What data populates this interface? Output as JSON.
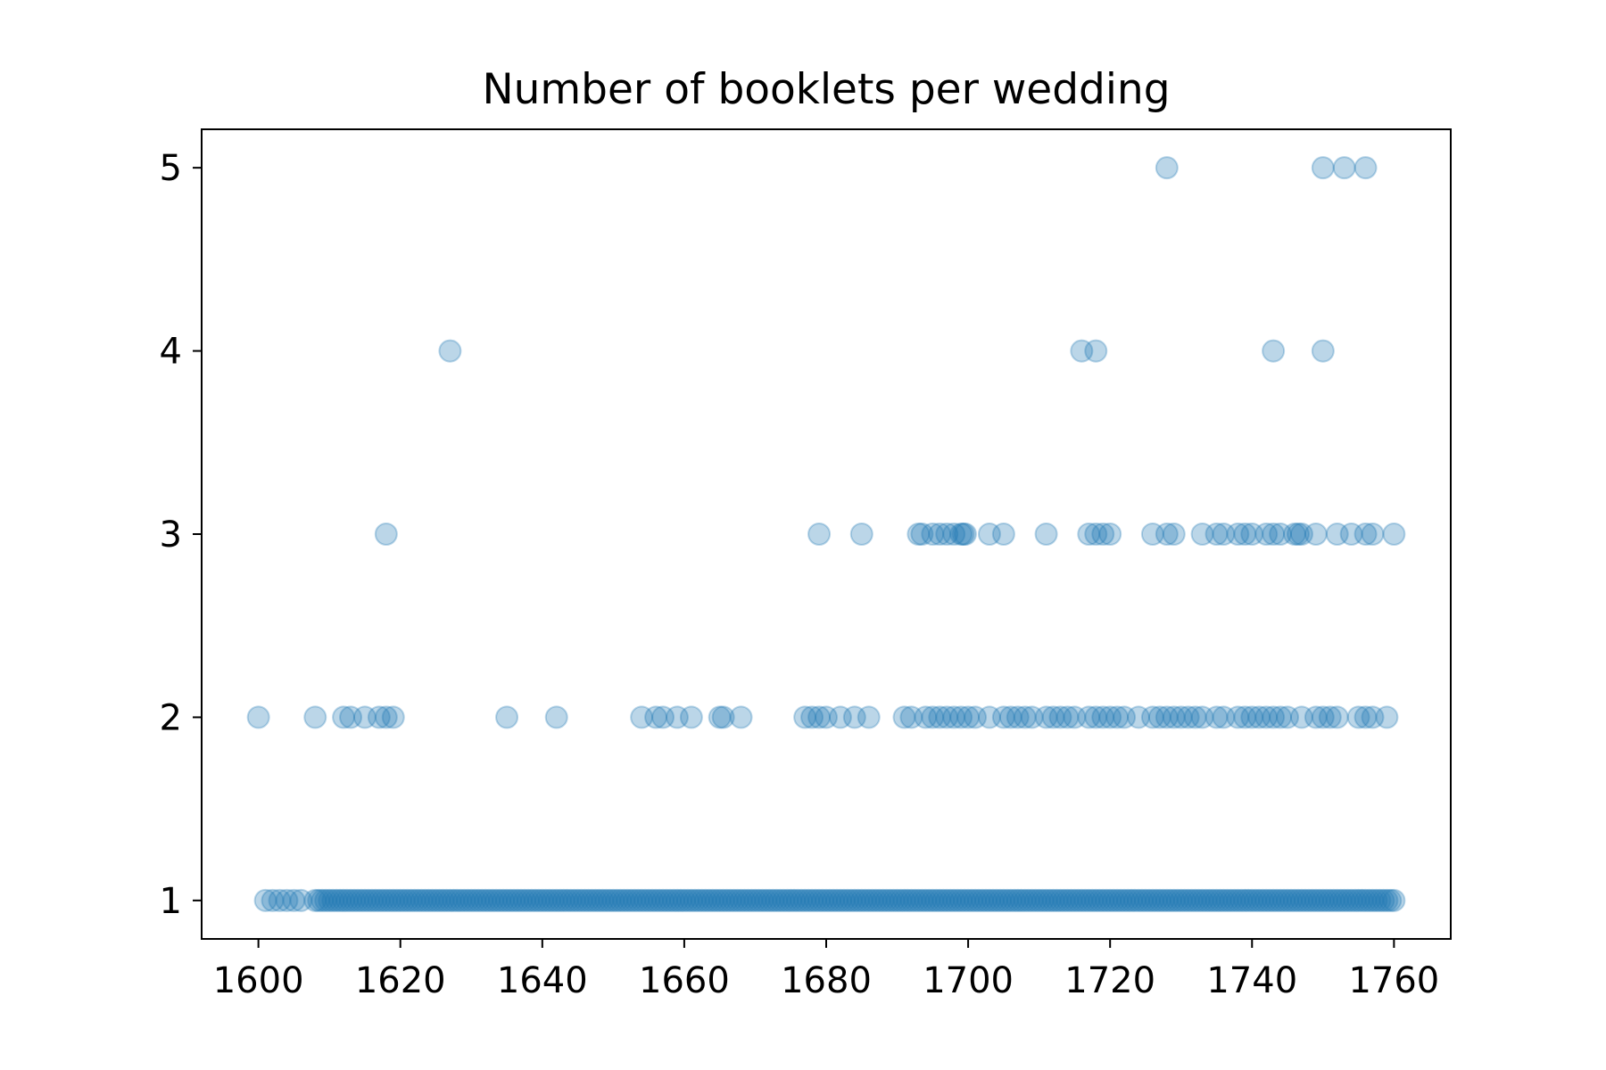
{
  "chart_data": {
    "type": "scatter",
    "title": "Number of booklets per wedding",
    "xlabel": "",
    "ylabel": "",
    "xlim": [
      1592,
      1768
    ],
    "ylim": [
      0.79,
      5.21
    ],
    "x_ticks": [
      1600,
      1620,
      1640,
      1660,
      1680,
      1700,
      1720,
      1740,
      1760
    ],
    "y_ticks": [
      1,
      2,
      3,
      4,
      5
    ],
    "grid": false,
    "legend": "none",
    "marker_color": "#1f77b4",
    "marker_alpha": 0.3,
    "series": [
      {
        "points": [
          [
            1728,
            5
          ],
          [
            1750,
            5
          ],
          [
            1753,
            5
          ],
          [
            1756,
            5
          ],
          [
            1627,
            4
          ],
          [
            1716,
            4
          ],
          [
            1718,
            4
          ],
          [
            1743,
            4
          ],
          [
            1750,
            4
          ],
          [
            1618,
            3
          ],
          [
            1679,
            3
          ],
          [
            1685,
            3
          ],
          [
            1693,
            3
          ],
          [
            1693.5,
            3
          ],
          [
            1695,
            3
          ],
          [
            1696,
            3
          ],
          [
            1697,
            3
          ],
          [
            1698,
            3
          ],
          [
            1699,
            3
          ],
          [
            1699.3,
            3
          ],
          [
            1699.6,
            3
          ],
          [
            1703,
            3
          ],
          [
            1705,
            3
          ],
          [
            1711,
            3
          ],
          [
            1717,
            3
          ],
          [
            1718,
            3
          ],
          [
            1719,
            3
          ],
          [
            1720,
            3
          ],
          [
            1726,
            3
          ],
          [
            1728,
            3
          ],
          [
            1729,
            3
          ],
          [
            1733,
            3
          ],
          [
            1735,
            3
          ],
          [
            1736,
            3
          ],
          [
            1738,
            3
          ],
          [
            1739,
            3
          ],
          [
            1740,
            3
          ],
          [
            1742,
            3
          ],
          [
            1743,
            3
          ],
          [
            1744,
            3
          ],
          [
            1746,
            3
          ],
          [
            1746.5,
            3
          ],
          [
            1747,
            3
          ],
          [
            1749,
            3
          ],
          [
            1752,
            3
          ],
          [
            1754,
            3
          ],
          [
            1756,
            3
          ],
          [
            1757,
            3
          ],
          [
            1760,
            3
          ],
          [
            1600,
            2
          ],
          [
            1608,
            2
          ],
          [
            1612,
            2
          ],
          [
            1613,
            2
          ],
          [
            1615,
            2
          ],
          [
            1617,
            2
          ],
          [
            1618,
            2
          ],
          [
            1619,
            2
          ],
          [
            1635,
            2
          ],
          [
            1642,
            2
          ],
          [
            1654,
            2
          ],
          [
            1656,
            2
          ],
          [
            1657,
            2
          ],
          [
            1659,
            2
          ],
          [
            1661,
            2
          ],
          [
            1665,
            2
          ],
          [
            1665.5,
            2
          ],
          [
            1668,
            2
          ],
          [
            1677,
            2
          ],
          [
            1678,
            2
          ],
          [
            1679,
            2
          ],
          [
            1680,
            2
          ],
          [
            1682,
            2
          ],
          [
            1684,
            2
          ],
          [
            1686,
            2
          ],
          [
            1691,
            2
          ],
          [
            1692,
            2
          ],
          [
            1694,
            2
          ],
          [
            1695,
            2
          ],
          [
            1696,
            2
          ],
          [
            1697,
            2
          ],
          [
            1698,
            2
          ],
          [
            1699,
            2
          ],
          [
            1700,
            2
          ],
          [
            1701,
            2
          ],
          [
            1703,
            2
          ],
          [
            1705,
            2
          ],
          [
            1706,
            2
          ],
          [
            1707,
            2
          ],
          [
            1708,
            2
          ],
          [
            1709,
            2
          ],
          [
            1711,
            2
          ],
          [
            1712,
            2
          ],
          [
            1713,
            2
          ],
          [
            1714,
            2
          ],
          [
            1715,
            2
          ],
          [
            1717,
            2
          ],
          [
            1718,
            2
          ],
          [
            1719,
            2
          ],
          [
            1720,
            2
          ],
          [
            1721,
            2
          ],
          [
            1722,
            2
          ],
          [
            1724,
            2
          ],
          [
            1726,
            2
          ],
          [
            1727,
            2
          ],
          [
            1728,
            2
          ],
          [
            1729,
            2
          ],
          [
            1730,
            2
          ],
          [
            1731,
            2
          ],
          [
            1732,
            2
          ],
          [
            1733,
            2
          ],
          [
            1735,
            2
          ],
          [
            1736,
            2
          ],
          [
            1738,
            2
          ],
          [
            1739,
            2
          ],
          [
            1740,
            2
          ],
          [
            1741,
            2
          ],
          [
            1742,
            2
          ],
          [
            1743,
            2
          ],
          [
            1744,
            2
          ],
          [
            1745,
            2
          ],
          [
            1747,
            2
          ],
          [
            1749,
            2
          ],
          [
            1750,
            2
          ],
          [
            1751,
            2
          ],
          [
            1752,
            2
          ],
          [
            1755,
            2
          ],
          [
            1756,
            2
          ],
          [
            1757,
            2
          ],
          [
            1759,
            2
          ]
        ],
        "dense_ranges": [
          {
            "y": 1,
            "from": 1601,
            "to": 1606,
            "step": 1
          },
          {
            "y": 1,
            "from": 1608,
            "to": 1760,
            "step": 0.5
          }
        ]
      }
    ]
  }
}
